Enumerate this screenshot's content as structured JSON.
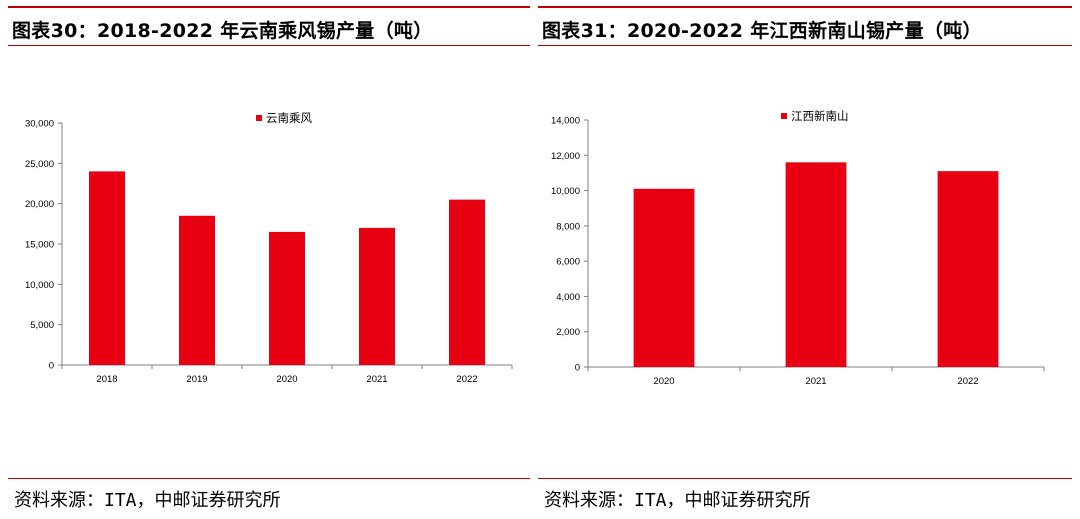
{
  "colors": {
    "accent": "#c00000",
    "bar": "#e60012",
    "axis": "#7f7f7f"
  },
  "charts": [
    {
      "title": "图表30：2018-2022 年云南乘风锡产量（吨）",
      "source": "资料来源：ITA，中邮证券研究所",
      "chart_data": {
        "type": "bar",
        "title": "2018-2022 年云南乘风锡产量（吨）",
        "categories": [
          "2018",
          "2019",
          "2020",
          "2021",
          "2022"
        ],
        "series": [
          {
            "name": "云南乘风",
            "values": [
              24000,
              18500,
              16500,
              17000,
              20500
            ]
          }
        ],
        "ylim": [
          0,
          30000
        ],
        "yticks": [
          "0",
          "5,000",
          "10,000",
          "15,000",
          "20,000",
          "25,000",
          "30,000"
        ],
        "xlabel": "",
        "ylabel": "",
        "legend_position": "top-center",
        "grid": false
      }
    },
    {
      "title": "图表31：2020-2022 年江西新南山锡产量（吨）",
      "source": "资料来源：ITA，中邮证券研究所",
      "chart_data": {
        "type": "bar",
        "title": "2020-2022 年江西新南山锡产量（吨）",
        "categories": [
          "2020",
          "2021",
          "2022"
        ],
        "series": [
          {
            "name": "江西新南山",
            "values": [
              10100,
              11600,
              11100
            ]
          }
        ],
        "ylim": [
          0,
          14000
        ],
        "yticks": [
          "0",
          "2,000",
          "4,000",
          "6,000",
          "8,000",
          "10,000",
          "12,000",
          "14,000"
        ],
        "xlabel": "",
        "ylabel": "",
        "legend_position": "top-center",
        "grid": false
      }
    }
  ]
}
